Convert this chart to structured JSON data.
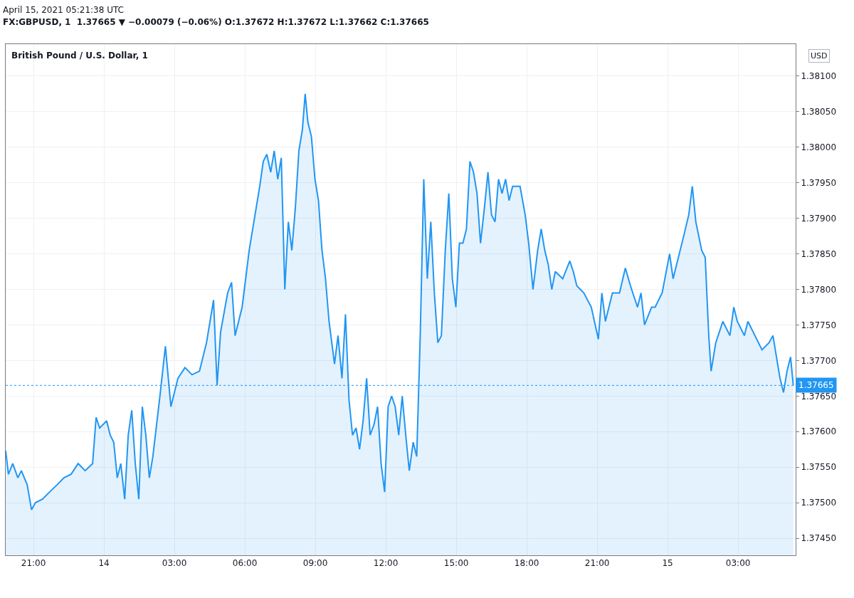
{
  "chart_data": {
    "type": "area",
    "title": "British Pound / U.S. Dollar, 1",
    "subtitle": "FX:GBPUSD, 1  1.37665 ▼ −0.00079 (−0.06%) O:1.37672 H:1.37672 L:1.37662 C:1.37665",
    "annotations": [
      "April 15, 2021 05:21:38 UTC",
      "USD"
    ],
    "x": [
      "2021-04-13T19:49",
      "2021-04-13T19:56",
      "2021-04-13T20:07",
      "2021-04-13T20:20",
      "2021-04-13T20:29",
      "2021-04-13T20:44",
      "2021-04-13T20:55",
      "2021-04-13T21:05",
      "2021-04-13T21:23",
      "2021-04-13T21:41",
      "2021-04-13T22:00",
      "2021-04-13T22:18",
      "2021-04-13T22:36",
      "2021-04-13T22:54",
      "2021-04-13T23:12",
      "2021-04-13T23:31",
      "2021-04-13T23:40",
      "2021-04-13T23:49",
      "2021-04-14T00:07",
      "2021-04-14T00:16",
      "2021-04-14T00:25",
      "2021-04-14T00:34",
      "2021-04-14T00:43",
      "2021-04-14T00:53",
      "2021-04-14T01:02",
      "2021-04-14T01:11",
      "2021-04-14T01:20",
      "2021-04-14T01:29",
      "2021-04-14T01:38",
      "2021-04-14T01:47",
      "2021-04-14T01:56",
      "2021-04-14T02:05",
      "2021-04-14T02:23",
      "2021-04-14T02:37",
      "2021-04-14T02:51",
      "2021-04-14T03:09",
      "2021-04-14T03:27",
      "2021-04-14T03:45",
      "2021-04-14T04:04",
      "2021-04-14T04:22",
      "2021-04-14T04:40",
      "2021-04-14T04:49",
      "2021-04-14T04:58",
      "2021-04-14T05:16",
      "2021-04-14T05:26",
      "2021-04-14T05:35",
      "2021-04-14T05:53",
      "2021-04-14T06:11",
      "2021-04-14T06:29",
      "2021-04-14T06:38",
      "2021-04-14T06:47",
      "2021-04-14T06:56",
      "2021-04-14T07:06",
      "2021-04-14T07:15",
      "2021-04-14T07:24",
      "2021-04-14T07:33",
      "2021-04-14T07:42",
      "2021-04-14T07:51",
      "2021-04-14T08:00",
      "2021-04-14T08:09",
      "2021-04-14T08:18",
      "2021-04-14T08:27",
      "2021-04-14T08:34",
      "2021-04-14T08:41",
      "2021-04-14T08:50",
      "2021-04-14T08:59",
      "2021-04-14T09:08",
      "2021-04-14T09:17",
      "2021-04-14T09:26",
      "2021-04-14T09:35",
      "2021-04-14T09:49",
      "2021-04-14T09:58",
      "2021-04-14T10:08",
      "2021-04-14T10:17",
      "2021-04-14T10:26",
      "2021-04-14T10:35",
      "2021-04-14T10:44",
      "2021-04-14T10:53",
      "2021-04-14T11:02",
      "2021-04-14T11:11",
      "2021-04-14T11:20",
      "2021-04-14T11:30",
      "2021-04-14T11:39",
      "2021-04-14T11:48",
      "2021-04-14T11:57",
      "2021-04-14T12:06",
      "2021-04-14T12:15",
      "2021-04-14T12:24",
      "2021-04-14T12:33",
      "2021-04-14T12:42",
      "2021-04-14T12:51",
      "2021-04-14T13:00",
      "2021-04-14T13:10",
      "2021-04-14T13:19",
      "2021-04-14T13:28",
      "2021-04-14T13:37",
      "2021-04-14T13:46",
      "2021-04-14T13:55",
      "2021-04-14T14:04",
      "2021-04-14T14:13",
      "2021-04-14T14:22",
      "2021-04-14T14:32",
      "2021-04-14T14:41",
      "2021-04-14T14:50",
      "2021-04-14T14:59",
      "2021-04-14T15:08",
      "2021-04-14T15:17",
      "2021-04-14T15:26",
      "2021-04-14T15:35",
      "2021-04-14T15:44",
      "2021-04-14T15:53",
      "2021-04-14T16:02",
      "2021-04-14T16:12",
      "2021-04-14T16:21",
      "2021-04-14T16:30",
      "2021-04-14T16:39",
      "2021-04-14T16:48",
      "2021-04-14T16:57",
      "2021-04-14T17:06",
      "2021-04-14T17:15",
      "2021-04-14T17:24",
      "2021-04-14T17:43",
      "2021-04-14T17:56",
      "2021-04-14T18:05",
      "2021-04-14T18:16",
      "2021-04-14T18:28",
      "2021-04-14T18:37",
      "2021-04-14T18:46",
      "2021-04-14T18:55",
      "2021-04-14T19:04",
      "2021-04-14T19:13",
      "2021-04-14T19:32",
      "2021-04-14T19:50",
      "2021-04-14T19:59",
      "2021-04-14T20:08",
      "2021-04-14T20:26",
      "2021-04-14T20:45",
      "2021-04-14T21:03",
      "2021-04-14T21:12",
      "2021-04-14T21:21",
      "2021-04-14T21:39",
      "2021-04-14T21:57",
      "2021-04-14T22:12",
      "2021-04-14T22:25",
      "2021-04-14T22:43",
      "2021-04-14T22:52",
      "2021-04-14T23:01",
      "2021-04-14T23:19",
      "2021-04-14T23:28",
      "2021-04-14T23:46",
      "2021-04-15T00:05",
      "2021-04-15T00:14",
      "2021-04-15T00:23",
      "2021-04-15T00:41",
      "2021-04-15T00:54",
      "2021-04-15T01:03",
      "2021-04-15T01:12",
      "2021-04-15T01:27",
      "2021-04-15T01:36",
      "2021-04-15T01:45",
      "2021-04-15T01:51",
      "2021-04-15T02:03",
      "2021-04-15T02:21",
      "2021-04-15T02:39",
      "2021-04-15T02:49",
      "2021-04-15T02:58",
      "2021-04-15T03:16",
      "2021-04-15T03:25",
      "2021-04-15T03:43",
      "2021-04-15T04:01",
      "2021-04-15T04:19",
      "2021-04-15T04:29",
      "2021-04-15T04:38",
      "2021-04-15T04:47",
      "2021-04-15T04:56",
      "2021-04-15T05:05",
      "2021-04-15T05:14",
      "2021-04-15T05:21"
    ],
    "series": [
      {
        "color": "#2196f3",
        "values": [
          1.37573,
          1.3754,
          1.37555,
          1.37535,
          1.37545,
          1.37525,
          1.3749,
          1.375,
          1.37505,
          1.37515,
          1.37525,
          1.37535,
          1.3754,
          1.37555,
          1.37545,
          1.37555,
          1.3762,
          1.37605,
          1.37615,
          1.37595,
          1.37585,
          1.37535,
          1.37555,
          1.37505,
          1.37595,
          1.3763,
          1.37555,
          1.37505,
          1.37635,
          1.37595,
          1.37535,
          1.37565,
          1.3765,
          1.3772,
          1.37635,
          1.37675,
          1.3769,
          1.3768,
          1.37685,
          1.37725,
          1.37785,
          1.37665,
          1.3774,
          1.37795,
          1.3781,
          1.37735,
          1.37775,
          1.37855,
          1.37915,
          1.37945,
          1.3798,
          1.3799,
          1.37965,
          1.37995,
          1.37955,
          1.37985,
          1.378,
          1.37895,
          1.37855,
          1.37915,
          1.37995,
          1.38025,
          1.38075,
          1.38035,
          1.38015,
          1.37955,
          1.37925,
          1.37855,
          1.37815,
          1.37755,
          1.37695,
          1.37735,
          1.37675,
          1.37765,
          1.37645,
          1.37595,
          1.37605,
          1.37575,
          1.37615,
          1.37675,
          1.37595,
          1.3761,
          1.37635,
          1.37555,
          1.37515,
          1.37635,
          1.3765,
          1.37635,
          1.37595,
          1.3765,
          1.37595,
          1.37545,
          1.37585,
          1.37565,
          1.37735,
          1.37955,
          1.37815,
          1.37895,
          1.37795,
          1.37725,
          1.37735,
          1.37855,
          1.37935,
          1.37815,
          1.37775,
          1.37865,
          1.37865,
          1.37885,
          1.3798,
          1.37965,
          1.37935,
          1.37865,
          1.37915,
          1.37965,
          1.37905,
          1.37895,
          1.37955,
          1.37935,
          1.37955,
          1.37925,
          1.37945,
          1.37945,
          1.37905,
          1.37865,
          1.378,
          1.37855,
          1.37885,
          1.37855,
          1.37835,
          1.378,
          1.37825,
          1.37815,
          1.3784,
          1.37825,
          1.37805,
          1.37795,
          1.37775,
          1.3773,
          1.37795,
          1.37755,
          1.37795,
          1.37795,
          1.3783,
          1.37805,
          1.37775,
          1.37795,
          1.3775,
          1.37775,
          1.37775,
          1.37795,
          1.3785,
          1.37815,
          1.37835,
          1.37875,
          1.37905,
          1.37945,
          1.37895,
          1.37855,
          1.37845,
          1.37735,
          1.37685,
          1.37725,
          1.37755,
          1.37735,
          1.37775,
          1.37755,
          1.37735,
          1.37755,
          1.37735,
          1.37715,
          1.37725,
          1.37735,
          1.37705,
          1.37675,
          1.37655,
          1.37685,
          1.37705,
          1.37665
        ]
      }
    ],
    "xlim": [
      "2021-04-13T19:49",
      "2021-04-15T05:27"
    ],
    "xticks": [
      {
        "value": "2021-04-13T21:00",
        "label": "21:00"
      },
      {
        "value": "2021-04-14T00:00",
        "label": "14"
      },
      {
        "value": "2021-04-14T03:00",
        "label": "03:00"
      },
      {
        "value": "2021-04-14T06:00",
        "label": "06:00"
      },
      {
        "value": "2021-04-14T09:00",
        "label": "09:00"
      },
      {
        "value": "2021-04-14T12:00",
        "label": "12:00"
      },
      {
        "value": "2021-04-14T15:00",
        "label": "15:00"
      },
      {
        "value": "2021-04-14T18:00",
        "label": "18:00"
      },
      {
        "value": "2021-04-14T21:00",
        "label": "21:00"
      },
      {
        "value": "2021-04-15T00:00",
        "label": "15"
      },
      {
        "value": "2021-04-15T03:00",
        "label": "03:00"
      }
    ],
    "ylim": [
      1.37426,
      1.38145
    ],
    "yticks": [
      {
        "value": 1.3745,
        "label": "1.37450"
      },
      {
        "value": 1.375,
        "label": "1.37500"
      },
      {
        "value": 1.3755,
        "label": "1.37550"
      },
      {
        "value": 1.376,
        "label": "1.37600"
      },
      {
        "value": 1.3765,
        "label": "1.37650"
      },
      {
        "value": 1.377,
        "label": "1.37700"
      },
      {
        "value": 1.3775,
        "label": "1.37750"
      },
      {
        "value": 1.378,
        "label": "1.37800"
      },
      {
        "value": 1.3785,
        "label": "1.37850"
      },
      {
        "value": 1.379,
        "label": "1.37900"
      },
      {
        "value": 1.3795,
        "label": "1.37950"
      },
      {
        "value": 1.38,
        "label": "1.38000"
      },
      {
        "value": 1.3805,
        "label": "1.38050"
      },
      {
        "value": 1.381,
        "label": "1.38100"
      }
    ],
    "ref_lines": [
      {
        "axis": "y",
        "value": 1.37665,
        "label": "1.37665",
        "color": "#2196f3",
        "line_style": "dotted"
      }
    ],
    "grid": true,
    "legend": false,
    "marker": "none",
    "line_style": "solid"
  }
}
